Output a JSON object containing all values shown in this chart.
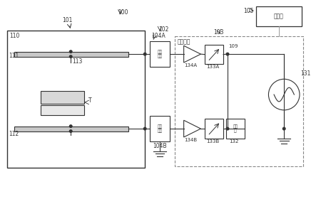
{
  "bg_color": "#ffffff",
  "lc": "#333333",
  "gray_fill": "#c8c8c8",
  "white_fill": "#ffffff",
  "light_gray": "#e8e8e8",
  "label_100": "100",
  "label_101": "101",
  "label_102": "102",
  "label_103": "103",
  "label_104A": "104A",
  "label_104B": "104B",
  "label_105": "105",
  "label_109": "109",
  "label_110": "110",
  "label_111": "111",
  "label_112": "112",
  "label_113": "113",
  "label_131": "131",
  "label_132": "132",
  "label_133A": "133A",
  "label_133B": "133B",
  "label_134A": "134A",
  "label_134B": "134B",
  "label_T": "T",
  "label_hf": "高频电源",
  "label_ctrl": "控制部",
  "label_match": "匹配\n电路",
  "label_phase": "移相\n器"
}
